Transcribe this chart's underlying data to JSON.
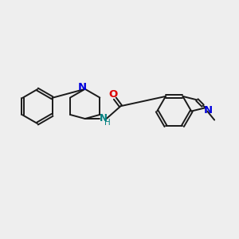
{
  "bg_color": "#eeeeee",
  "bond_color": "#1a1a1a",
  "nitrogen_color": "#0000dd",
  "oxygen_color": "#dd0000",
  "nh_color": "#008080",
  "font_size": 8.5,
  "line_width": 1.4,
  "fig_size": [
    3.0,
    3.0
  ],
  "dpi": 100,
  "xlim": [
    0,
    10
  ],
  "ylim": [
    0,
    10
  ]
}
